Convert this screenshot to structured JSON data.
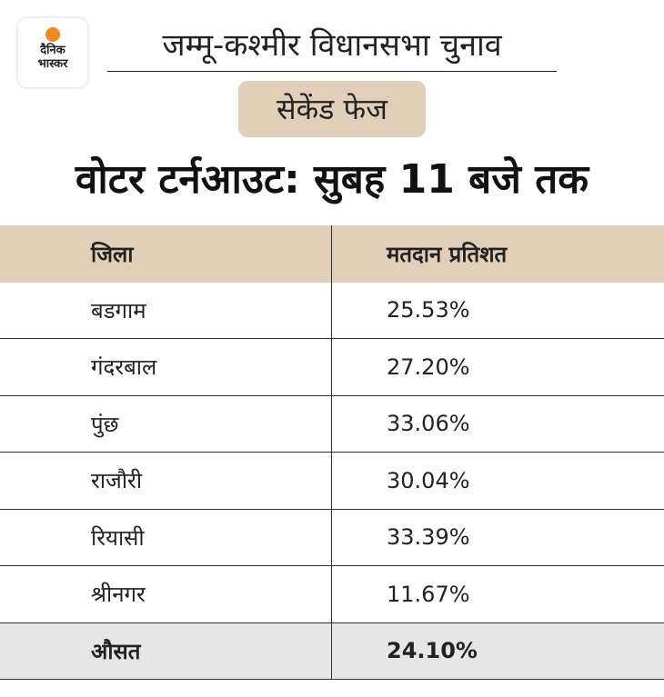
{
  "logo": {
    "line1": "दैनिक",
    "line2": "भास्कर"
  },
  "title": "जम्मू-कश्मीर विधानसभा चुनाव",
  "badge": "सेकेंड फेज",
  "heading": "वोटर टर्नआउट: सुबह 11 बजे तक",
  "table": {
    "headers": [
      "जिला",
      "मतदान प्रतिशत"
    ],
    "rows": [
      {
        "district": "बडगाम",
        "turnout": "25.53%"
      },
      {
        "district": "गंदरबाल",
        "turnout": "27.20%"
      },
      {
        "district": "पुंछ",
        "turnout": "33.06%"
      },
      {
        "district": "राजौरी",
        "turnout": "30.04%"
      },
      {
        "district": "रियासी",
        "turnout": "33.39%"
      },
      {
        "district": "श्रीनगर",
        "turnout": "11.67%"
      }
    ],
    "average": {
      "label": "औसत",
      "value": "24.10%"
    }
  }
}
